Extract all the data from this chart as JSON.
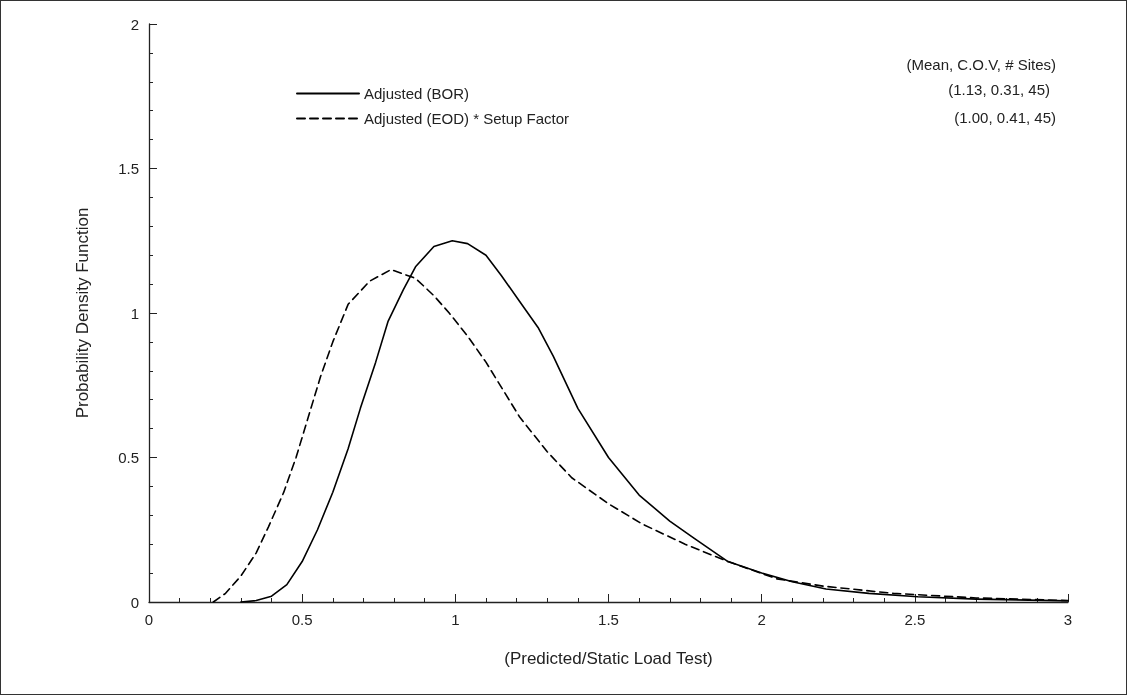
{
  "chart_data": {
    "type": "line",
    "xlabel": "(Predicted/Static Load Test)",
    "ylabel": "Probability Density Function",
    "legend_title": "(Mean, C.O.V, # Sites)",
    "annotations": [
      "(1.13, 0.31, 45)",
      "(1.00, 0.41, 45)"
    ],
    "series": [
      {
        "name": "Adjusted (BOR)",
        "color": "#000000",
        "line_style": "solid",
        "x": [
          0.3,
          0.35,
          0.4,
          0.45,
          0.5,
          0.55,
          0.6,
          0.65,
          0.69,
          0.74,
          0.78,
          0.83,
          0.87,
          0.93,
          0.99,
          1.04,
          1.1,
          1.15,
          1.21,
          1.27,
          1.32,
          1.4,
          1.5,
          1.6,
          1.7,
          1.78,
          1.89,
          2.0,
          2.1,
          2.21,
          2.35,
          2.51,
          2.7,
          3.0
        ],
        "values": [
          0.0,
          0.005,
          0.02,
          0.06,
          0.14,
          0.25,
          0.38,
          0.53,
          0.67,
          0.83,
          0.97,
          1.08,
          1.16,
          1.23,
          1.25,
          1.24,
          1.2,
          1.13,
          1.04,
          0.95,
          0.85,
          0.67,
          0.5,
          0.37,
          0.28,
          0.22,
          0.14,
          0.1,
          0.07,
          0.045,
          0.03,
          0.018,
          0.01,
          0.004
        ]
      },
      {
        "name": "Adjusted (EOD) * Setup Factor",
        "color": "#000000",
        "line_style": "dashed",
        "x": [
          0.21,
          0.25,
          0.3,
          0.35,
          0.39,
          0.44,
          0.48,
          0.52,
          0.56,
          0.6,
          0.65,
          0.72,
          0.79,
          0.87,
          0.93,
          0.98,
          1.04,
          1.1,
          1.21,
          1.3,
          1.38,
          1.5,
          1.61,
          1.75,
          1.89,
          2.05,
          2.2,
          2.43,
          2.7,
          3.0
        ],
        "values": [
          0.0,
          0.03,
          0.09,
          0.17,
          0.26,
          0.38,
          0.5,
          0.64,
          0.78,
          0.9,
          1.03,
          1.11,
          1.15,
          1.12,
          1.06,
          1.0,
          0.92,
          0.83,
          0.64,
          0.52,
          0.43,
          0.34,
          0.27,
          0.2,
          0.14,
          0.08,
          0.055,
          0.03,
          0.014,
          0.005
        ]
      }
    ],
    "xlim": [
      0,
      3
    ],
    "xticks": [
      0,
      0.5,
      1,
      1.5,
      2,
      2.5,
      3
    ],
    "ylim": [
      0,
      2
    ],
    "yticks": [
      0,
      0.5,
      1,
      1.5,
      2
    ],
    "grid": false,
    "legend": "top",
    "marker": "none"
  }
}
